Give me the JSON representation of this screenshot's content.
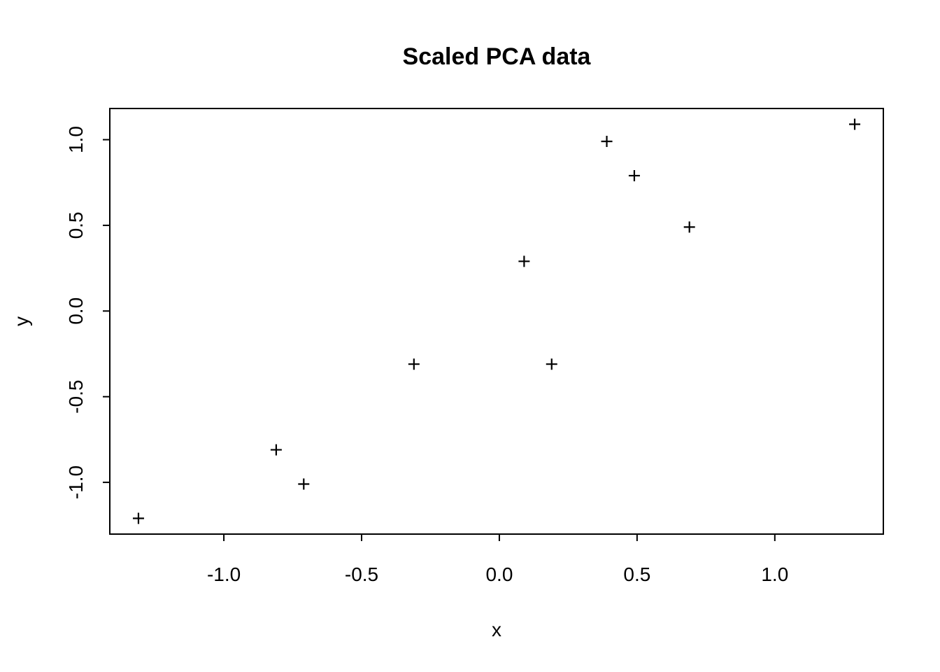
{
  "figure": {
    "background": "#ffffff",
    "foreground": "#000000"
  },
  "chart_data": {
    "type": "scatter",
    "title": "Scaled PCA data",
    "xlabel": "x",
    "ylabel": "y",
    "marker_symbol": "plus",
    "marker_color": "#000000",
    "axis_color": "#000000",
    "grid": false,
    "legend": null,
    "points": [
      {
        "x": 0.69,
        "y": 0.49
      },
      {
        "x": -1.31,
        "y": -1.21
      },
      {
        "x": 0.39,
        "y": 0.99
      },
      {
        "x": 0.09,
        "y": 0.29
      },
      {
        "x": 1.29,
        "y": 1.09
      },
      {
        "x": 0.49,
        "y": 0.79
      },
      {
        "x": 0.19,
        "y": -0.31
      },
      {
        "x": -0.81,
        "y": -0.81
      },
      {
        "x": -0.31,
        "y": -0.31
      },
      {
        "x": -0.71,
        "y": -1.01
      }
    ],
    "xlim": [
      -1.414,
      1.394
    ],
    "ylim": [
      -1.302,
      1.182
    ],
    "xticks": [
      {
        "value": -1.0,
        "label": "-1.0"
      },
      {
        "value": -0.5,
        "label": "-0.5"
      },
      {
        "value": 0.0,
        "label": "0.0"
      },
      {
        "value": 0.5,
        "label": "0.5"
      },
      {
        "value": 1.0,
        "label": "1.0"
      }
    ],
    "yticks": [
      {
        "value": -1.0,
        "label": "-1.0"
      },
      {
        "value": -0.5,
        "label": "-0.5"
      },
      {
        "value": 0.0,
        "label": "0.0"
      },
      {
        "value": 0.5,
        "label": "0.5"
      },
      {
        "value": 1.0,
        "label": "1.0"
      }
    ]
  }
}
